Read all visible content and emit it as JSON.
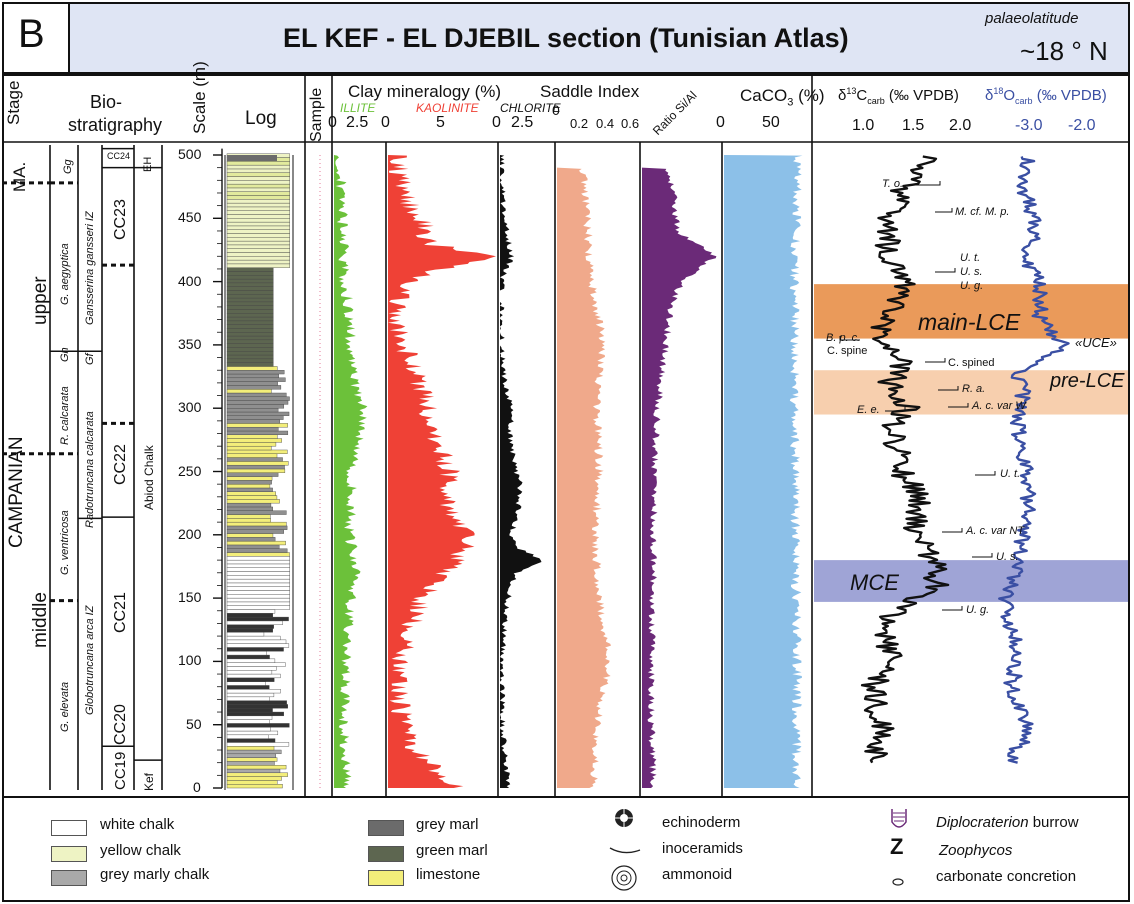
{
  "header": {
    "panel_letter": "B",
    "title": "EL KEF - EL DJEBIL section (Tunisian Atlas)",
    "palaeolat_label": "palaeolatitude",
    "palaeolat_value": "~18 ° N"
  },
  "columns": {
    "stage": "Stage",
    "biostrat_1": "Bio-",
    "biostrat_2": "stratigraphy",
    "scale": "Scale (m)",
    "log": "Log",
    "sample": "Sample",
    "clay": "Clay mineralogy (%)",
    "illite": "ILLITE",
    "kaolinite": "KAOLINITE",
    "chlorite": "CHLORITE",
    "saddle": "Saddle Index",
    "ratio": "Ratio Si/Al",
    "caco3": "CaCO",
    "caco3_sub": "3",
    "caco3_unit": " (%)",
    "d13c": "δ",
    "d13c_sup": "13",
    "d13c_main": "C",
    "d13c_sub": "carb",
    "d13c_unit": " (‰ VPDB)",
    "d18o": "δ",
    "d18o_sup": "18",
    "d18o_main": "O",
    "d18o_sub": "carb",
    "d18o_unit": " (‰ VPDB)"
  },
  "stages": {
    "ma": "MA.",
    "campanian": "CAMPANIAN",
    "upper": "upper",
    "middle": "middle"
  },
  "zones": {
    "g_aegyptica": "G. aegyptica",
    "g_ventricosa": "G. ventricosa",
    "g_elevata": "G. elevata",
    "r_calcarata": "R. calcarata",
    "gh": "Gh",
    "gg": "Gg",
    "gansserina": "Gansserina gansseri IZ",
    "radotruncana": "Radotruncana calcarata",
    "globotruncana": "Globotruncana arca IZ",
    "gf": "Gf",
    "cc24": "CC24",
    "cc23": "CC23",
    "cc22": "CC22",
    "cc21": "CC21",
    "cc20": "CC20",
    "cc19": "CC19",
    "eh": "EH",
    "abiod": "Abiod Chalk",
    "kef": "Kef"
  },
  "scale_ticks": [
    "500",
    "450",
    "400",
    "350",
    "300",
    "250",
    "200",
    "150",
    "100",
    "50",
    "0"
  ],
  "axes": {
    "illite": [
      "0",
      "2.5"
    ],
    "kaolinite": [
      "0",
      "5"
    ],
    "chlorite": [
      "0",
      "2.5"
    ],
    "saddle": [
      "0",
      "0.2",
      "0.4",
      "0.6"
    ],
    "caco3": [
      "0",
      "50"
    ],
    "d13c": [
      "1.0",
      "1.5",
      "2.0"
    ],
    "d18o": [
      "-3.0",
      "-2.0"
    ]
  },
  "events": {
    "main_lce": "main-LCE",
    "uce": "«UCE»",
    "pre_lce": "pre-LCE",
    "mce": "MCE"
  },
  "markers": [
    {
      "label": "T. o."
    },
    {
      "label": "M. cf. M. p."
    },
    {
      "label": "U. t."
    },
    {
      "label": "U. s."
    },
    {
      "label": "U. g."
    },
    {
      "label": "B. p. c."
    },
    {
      "label": "C. spine"
    },
    {
      "label": "C. spined"
    },
    {
      "label": "R. a."
    },
    {
      "label": "E. e."
    },
    {
      "label": "A. c. var W"
    },
    {
      "label": "U. t."
    },
    {
      "label": "A. c. var NT"
    },
    {
      "label": "U. s."
    },
    {
      "label": "U. g."
    }
  ],
  "legend": {
    "white_chalk": "white chalk",
    "yellow_chalk": "yellow chalk",
    "grey_marly_chalk": "grey marly chalk",
    "grey_marl": "grey marl",
    "green_marl": "green marl",
    "limestone": "limestone",
    "echinoderm": "echinoderm",
    "inoceramids": "inoceramids",
    "ammonoid": "ammonoid",
    "diplocraterion": "Diplocraterion",
    "burrow": " burrow",
    "zoophycos_symbol": "Z",
    "zoophycos": "Zoophycos",
    "concretion": "carbonate concretion"
  },
  "colors": {
    "illite": "#6cc13a",
    "kaolinite": "#ef4136",
    "chlorite": "#111111",
    "saddle": "#f0a98b",
    "ratio": "#6b2a78",
    "caco3": "#8cc0e8",
    "d13c": "#111111",
    "d18o": "#3a4fa3",
    "main_lce_band": "#ea9a5a",
    "pre_lce_band": "#f7cfae",
    "mce_band": "#9fa4d6",
    "header_bg": "#dfe5f4"
  },
  "chart_data": {
    "type": "area",
    "y_axis": {
      "label": "Scale (m)",
      "ylim": [
        0,
        500
      ]
    },
    "bands": [
      {
        "name": "main-LCE",
        "ylim": [
          355,
          398
        ]
      },
      {
        "name": "pre-LCE",
        "ylim": [
          295,
          330
        ]
      },
      {
        "name": "MCE",
        "ylim": [
          147,
          180
        ]
      }
    ],
    "series": [
      {
        "name": "ILLITE",
        "xlim": [
          0,
          3
        ],
        "depth": [
          0,
          50,
          100,
          150,
          170,
          200,
          230,
          250,
          280,
          300,
          320,
          350,
          380,
          400,
          420,
          450,
          480,
          500
        ],
        "values": [
          0.8,
          0.6,
          0.7,
          1.0,
          1.5,
          0.9,
          1.1,
          1.0,
          1.6,
          1.9,
          1.2,
          1.0,
          0.9,
          0.6,
          0.6,
          0.5,
          0.4,
          0.3
        ]
      },
      {
        "name": "KAOLINITE",
        "xlim": [
          0,
          8
        ],
        "depth": [
          0,
          10,
          30,
          50,
          70,
          100,
          130,
          150,
          170,
          190,
          200,
          210,
          230,
          250,
          270,
          290,
          310,
          330,
          340,
          360,
          380,
          400,
          410,
          420,
          430,
          450,
          470,
          490,
          500
        ],
        "values": [
          5.5,
          4.0,
          2.0,
          1.2,
          0.8,
          1.0,
          1.8,
          2.5,
          4.2,
          5.8,
          6.2,
          5.0,
          4.2,
          4.6,
          3.8,
          3.2,
          2.6,
          2.0,
          1.6,
          0.8,
          0.6,
          1.5,
          4.0,
          7.5,
          3.0,
          2.5,
          1.0,
          0.8,
          1.0
        ]
      },
      {
        "name": "CHLORITE",
        "xlim": [
          0,
          4
        ],
        "depth": [
          0,
          50,
          100,
          150,
          170,
          180,
          190,
          200,
          220,
          240,
          260,
          280,
          300,
          320,
          340,
          360,
          400,
          420,
          440,
          470,
          500
        ],
        "values": [
          0.6,
          0.2,
          0.1,
          0.6,
          1.2,
          3.2,
          1.2,
          0.9,
          1.4,
          1.5,
          1.0,
          0.8,
          0.8,
          0.4,
          0.2,
          0.1,
          0.1,
          0.9,
          0.5,
          0.2,
          0.1
        ]
      },
      {
        "name": "Saddle Index",
        "xlim": [
          0,
          0.7
        ],
        "depth": [
          0,
          50,
          100,
          150,
          200,
          250,
          300,
          350,
          400,
          420,
          450,
          490
        ],
        "values": [
          0.32,
          0.34,
          0.45,
          0.36,
          0.33,
          0.37,
          0.34,
          0.4,
          0.3,
          0.28,
          0.26,
          0.22
        ]
      },
      {
        "name": "Ratio Si/Al",
        "xlim": [
          0,
          1
        ],
        "depth": [
          0,
          50,
          100,
          150,
          200,
          250,
          300,
          350,
          380,
          400,
          420,
          440,
          470,
          490
        ],
        "values": [
          0.15,
          0.12,
          0.12,
          0.14,
          0.15,
          0.16,
          0.2,
          0.3,
          0.38,
          0.5,
          0.95,
          0.45,
          0.4,
          0.3
        ]
      },
      {
        "name": "CaCO3",
        "xlim": [
          0,
          100
        ],
        "depth": [
          0,
          100,
          200,
          300,
          400,
          500
        ],
        "values": [
          84,
          85,
          83,
          82,
          82,
          86
        ]
      },
      {
        "name": "δ13C carb",
        "xlim": [
          0.5,
          2.5
        ],
        "depth": [
          20,
          50,
          80,
          100,
          130,
          145,
          160,
          180,
          200,
          230,
          250,
          270,
          290,
          300,
          320,
          340,
          360,
          380,
          400,
          420,
          440,
          460,
          480,
          490,
          500
        ],
        "values": [
          1.1,
          1.2,
          1.1,
          1.3,
          1.2,
          1.5,
          1.8,
          1.75,
          1.55,
          1.6,
          1.4,
          1.35,
          1.35,
          1.5,
          1.3,
          1.4,
          1.2,
          1.3,
          1.5,
          1.3,
          1.25,
          1.35,
          1.5,
          1.6,
          1.7
        ]
      },
      {
        "name": "δ18O carb",
        "xlim": [
          -3.8,
          -1.3
        ],
        "depth": [
          20,
          50,
          80,
          100,
          130,
          150,
          170,
          200,
          230,
          260,
          290,
          310,
          330,
          350,
          370,
          400,
          420,
          440,
          460,
          480,
          500
        ],
        "values": [
          -3.2,
          -2.9,
          -3.2,
          -3.1,
          -3.2,
          -3.3,
          -3.1,
          -3.0,
          -2.9,
          -3.0,
          -3.1,
          -3.0,
          -3.1,
          -2.3,
          -2.7,
          -2.7,
          -3.0,
          -2.8,
          -2.9,
          -3.0,
          -2.9
        ]
      }
    ]
  }
}
